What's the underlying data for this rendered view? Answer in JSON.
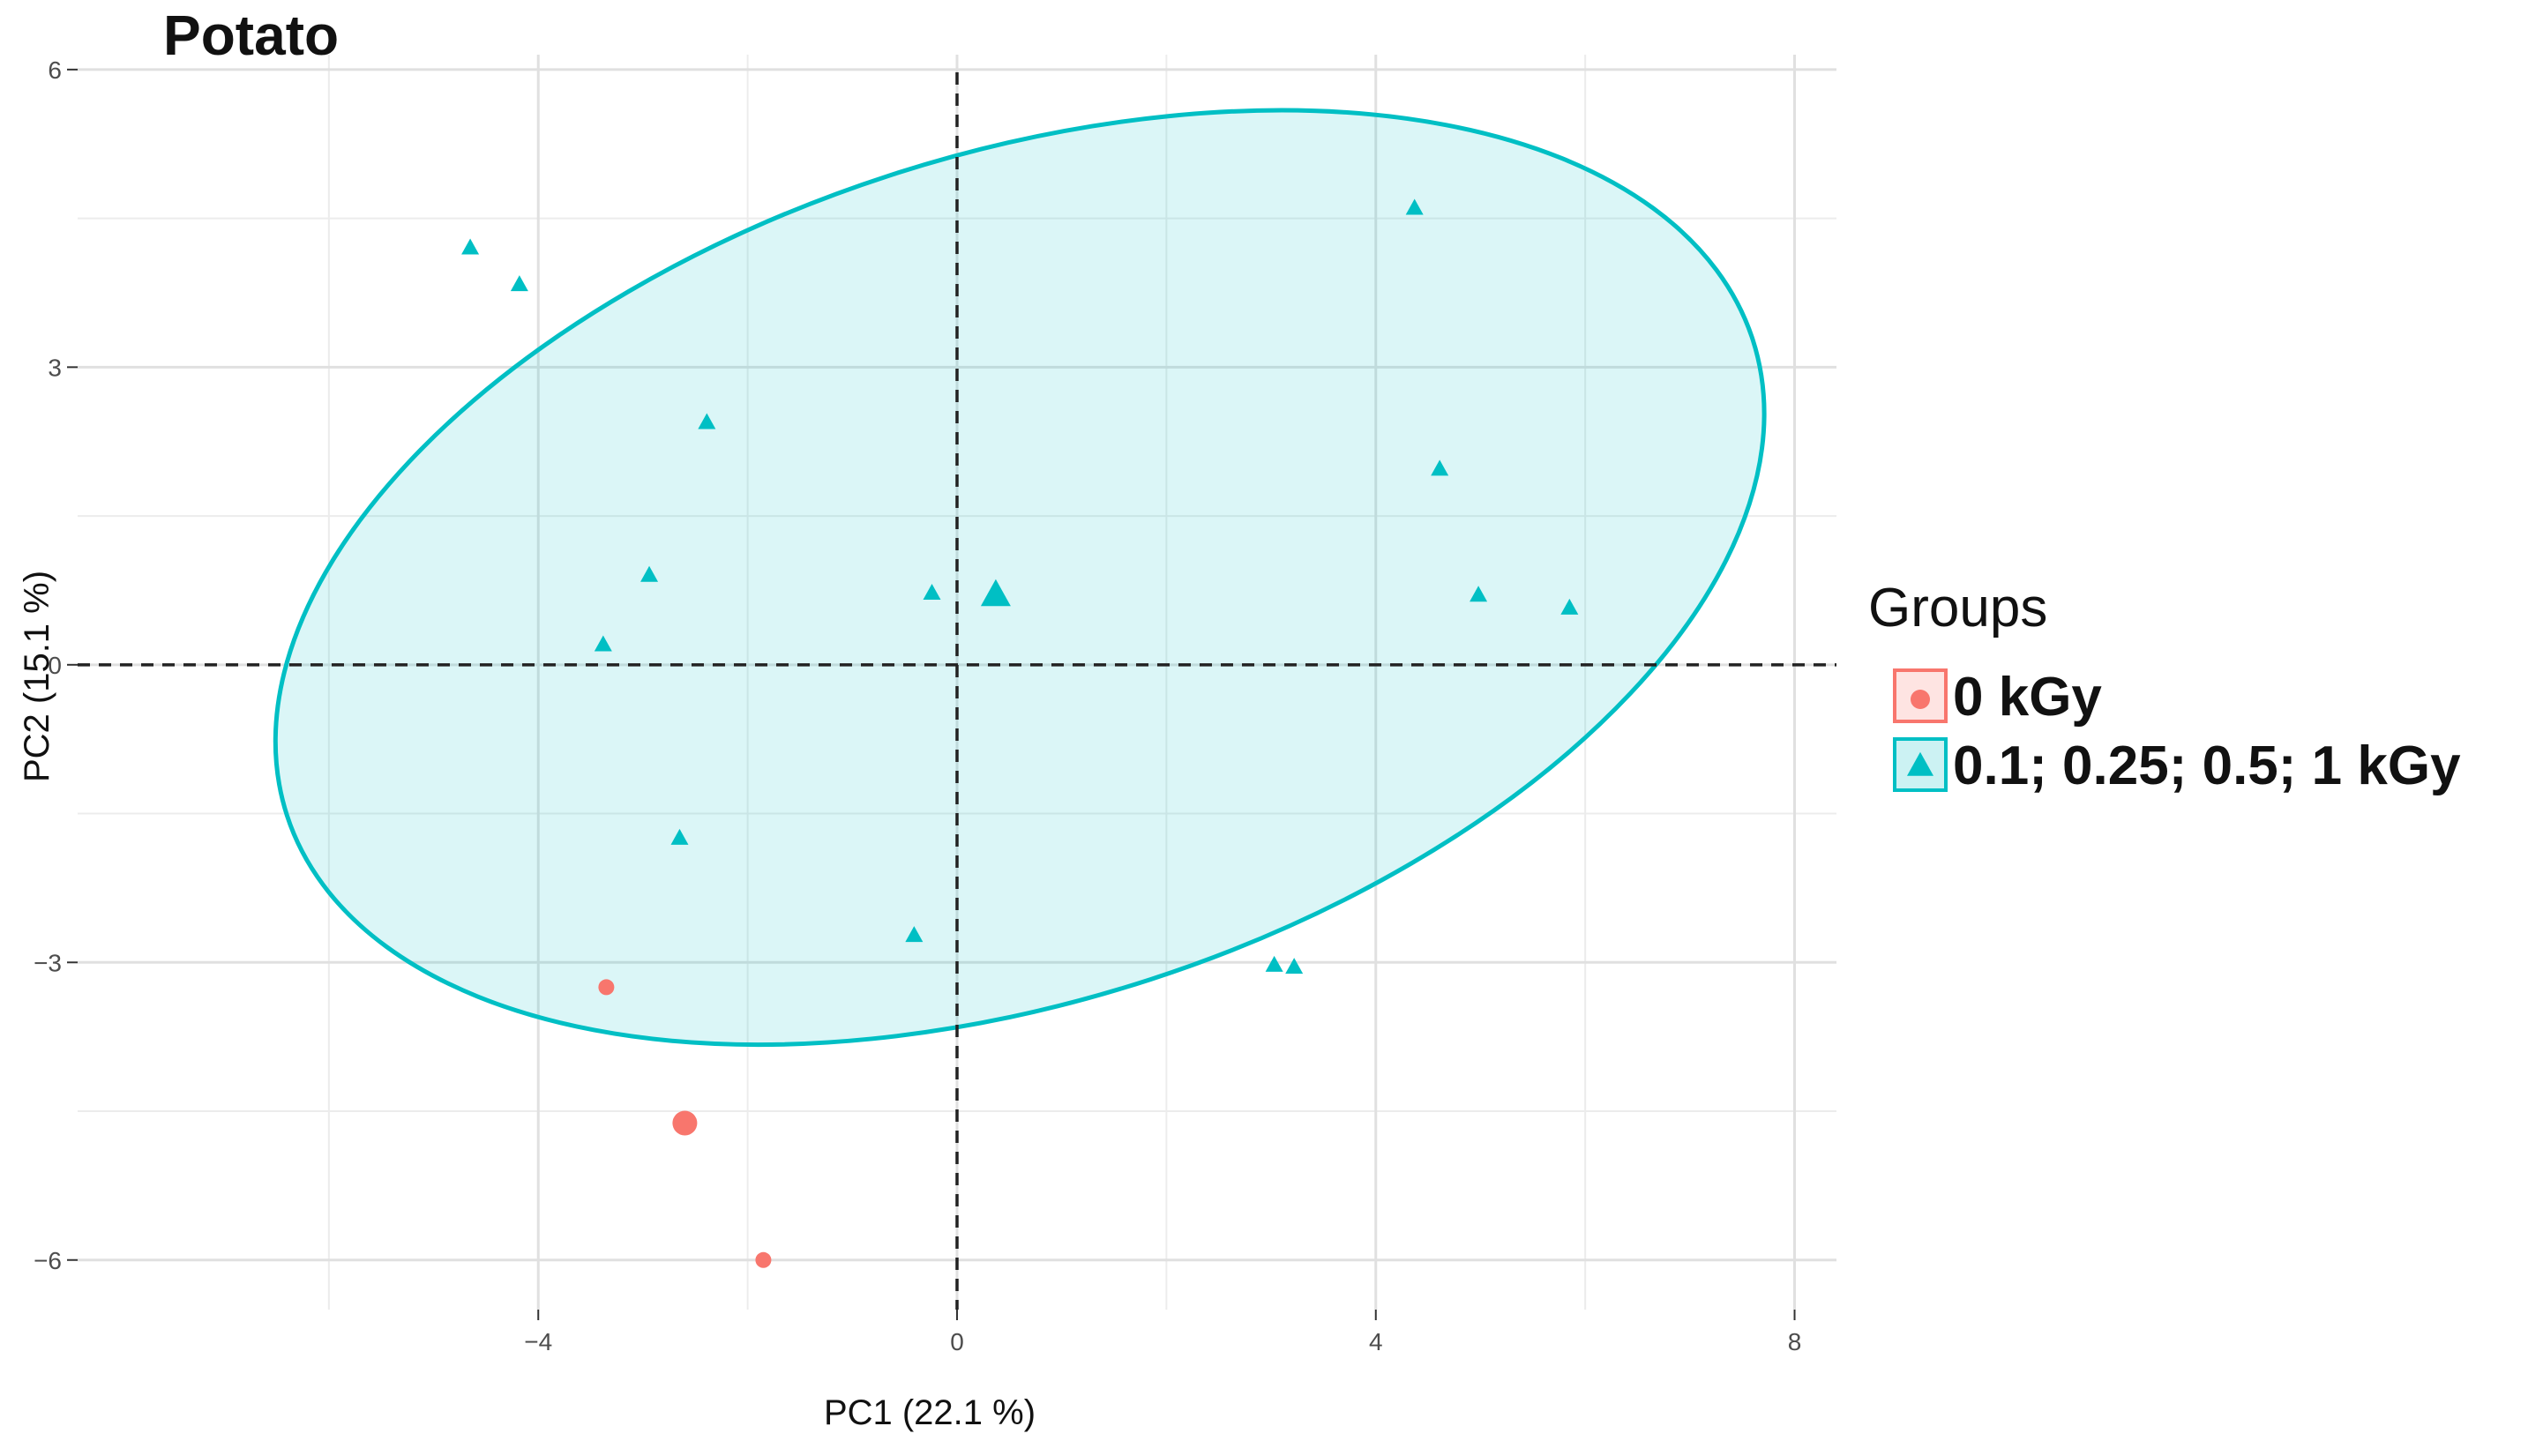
{
  "chart_data": {
    "type": "scatter",
    "title": "Potato",
    "xlabel": "PC1 (22.1 %)",
    "ylabel": "PC2 (15.1 %)",
    "xlim": [
      -8.4,
      8.4
    ],
    "ylim": [
      -6.5,
      6.15
    ],
    "xticks": [
      -4,
      0,
      4,
      8
    ],
    "yticks": [
      6,
      3,
      0,
      -3,
      -6
    ],
    "xtick_labels": [
      "−4",
      "0",
      "4",
      "8"
    ],
    "ytick_labels": [
      "6",
      "3",
      "0",
      "−3",
      "−6"
    ],
    "grid": true,
    "reference_lines": {
      "x": 0,
      "y": 0,
      "style": "dashed"
    },
    "legend": {
      "title": "Groups",
      "position": "right",
      "entries": [
        {
          "label": "0 kGy",
          "marker": "circle",
          "color": "#F8766D"
        },
        {
          "label": "0.1; 0.25; 0.5; 1 kGy",
          "marker": "triangle",
          "color": "#00BFC4"
        }
      ]
    },
    "series": [
      {
        "name": "0 kGy",
        "marker": "circle",
        "color": "#F8766D",
        "x": [
          -3.35,
          -1.85
        ],
        "y": [
          -3.25,
          -6.0
        ],
        "centroid": {
          "x": -2.6,
          "y": -4.62
        }
      },
      {
        "name": "0.1; 0.25; 0.5; 1 kGy",
        "marker": "triangle",
        "color": "#00BFC4",
        "x": [
          -4.65,
          -4.18,
          -2.39,
          -2.94,
          -3.38,
          -2.65,
          -0.41,
          -0.24,
          4.37,
          4.61,
          4.98,
          5.85,
          3.03,
          3.22
        ],
        "y": [
          4.2,
          3.83,
          2.44,
          0.9,
          0.2,
          -1.75,
          -2.73,
          0.72,
          4.6,
          1.97,
          0.7,
          0.57,
          -3.03,
          -3.05
        ],
        "centroid": {
          "x": 0.37,
          "y": 0.7
        },
        "ellipse": {
          "cx": 0.6,
          "cy": 0.88,
          "rx": 7.36,
          "ry": 4.26,
          "angle_deg": -18
        }
      }
    ]
  }
}
